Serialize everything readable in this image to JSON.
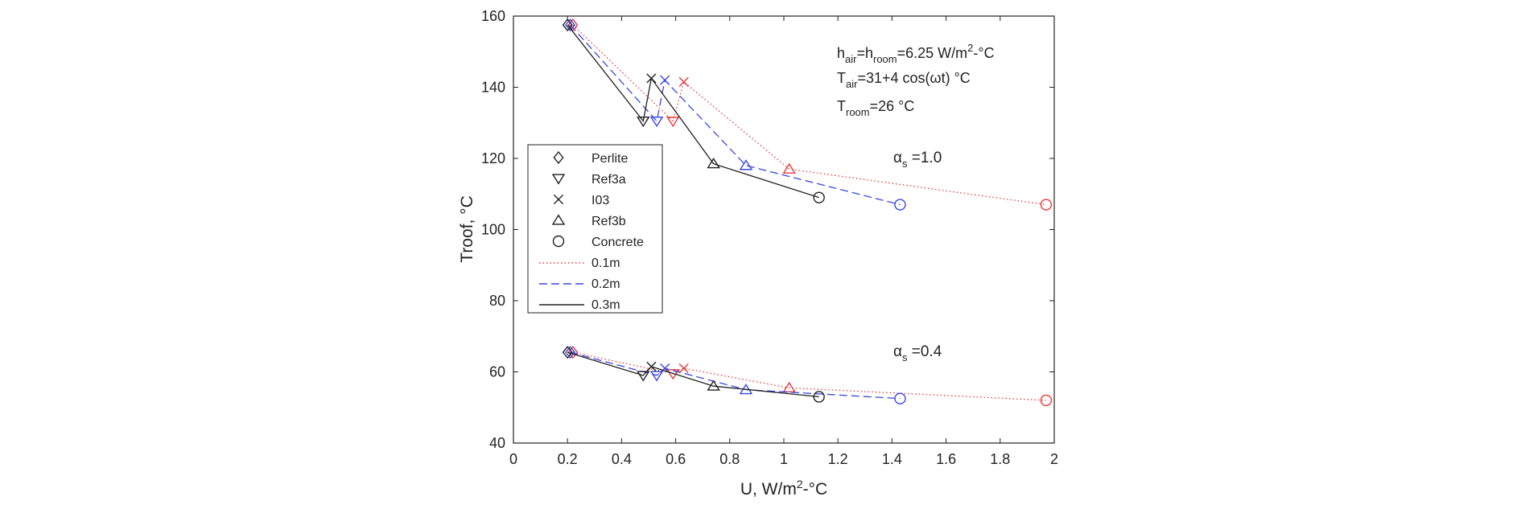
{
  "chart_data": {
    "type": "scatter",
    "xlabel": "U, W/m",
    "xlabel_sup": "2",
    "xlabel_tail": "-°C",
    "ylabel": "Troof, °C",
    "xlim": [
      0,
      2
    ],
    "ylim": [
      40,
      160
    ],
    "xticks": [
      "0",
      "0.2",
      "0.4",
      "0.6",
      "0.8",
      "1",
      "1.2",
      "1.4",
      "1.6",
      "1.8",
      "2"
    ],
    "yticks": [
      "40",
      "60",
      "80",
      "100",
      "120",
      "140",
      "160"
    ],
    "series": [
      {
        "name": "0.1m",
        "color": "#e8393b",
        "dash": "1.5,3",
        "groups": [
          {
            "alpha": "1.0",
            "x": [
              0.22,
              0.59,
              0.63,
              1.02,
              1.97
            ],
            "y": [
              157.5,
              130.5,
              141.5,
              117.0,
              107.0
            ]
          },
          {
            "alpha": "0.4",
            "x": [
              0.22,
              0.59,
              0.63,
              1.02,
              1.97
            ],
            "y": [
              65.5,
              59.5,
              61.0,
              55.5,
              52.0
            ]
          }
        ]
      },
      {
        "name": "0.2m",
        "color": "#3a47e0",
        "dash": "10,5",
        "groups": [
          {
            "alpha": "1.0",
            "x": [
              0.21,
              0.53,
              0.56,
              0.86,
              1.43
            ],
            "y": [
              157.5,
              130.5,
              142.0,
              118.0,
              107.0
            ]
          },
          {
            "alpha": "0.4",
            "x": [
              0.21,
              0.53,
              0.56,
              0.86,
              1.43
            ],
            "y": [
              65.5,
              59.0,
              61.0,
              55.0,
              52.5
            ]
          }
        ]
      },
      {
        "name": "0.3m",
        "color": "#222222",
        "dash": "",
        "groups": [
          {
            "alpha": "1.0",
            "x": [
              0.2,
              0.48,
              0.51,
              0.74,
              1.13
            ],
            "y": [
              157.5,
              130.5,
              142.5,
              118.5,
              109.0
            ]
          },
          {
            "alpha": "0.4",
            "x": [
              0.2,
              0.48,
              0.51,
              0.74,
              1.13
            ],
            "y": [
              65.5,
              59.0,
              61.5,
              56.0,
              53.0
            ]
          }
        ]
      }
    ],
    "point_order": [
      "Perlite",
      "Ref3a",
      "I03",
      "Ref3b",
      "Concrete"
    ],
    "legend": {
      "placement": "center-left",
      "markers": [
        {
          "marker": "diamond",
          "label": "Perlite"
        },
        {
          "marker": "triangle-down",
          "label": "Ref3a"
        },
        {
          "marker": "x",
          "label": "I03"
        },
        {
          "marker": "triangle-up",
          "label": "Ref3b"
        },
        {
          "marker": "circle",
          "label": "Concrete"
        }
      ],
      "lines": [
        {
          "label": "0.1m",
          "color": "#e8393b",
          "dash": "1.5,3"
        },
        {
          "label": "0.2m",
          "color": "#3a47e0",
          "dash": "10,5"
        },
        {
          "label": "0.3m",
          "color": "#222222",
          "dash": ""
        }
      ]
    },
    "annotations": {
      "h_line": {
        "a": "h",
        "a_sub": "air",
        "b": "=h",
        "b_sub": "room",
        "c": "=6.25 W/m",
        "c_sup": "2",
        "d": "-°C"
      },
      "t_air": {
        "a": "T",
        "a_sub": "air",
        "b": "=31+4 cos(ωt) °C"
      },
      "t_room": {
        "a": "T",
        "a_sub": "room",
        "b": "=26 °C"
      },
      "alpha_high": {
        "a": "α",
        "a_sub": "s",
        "b": " =1.0"
      },
      "alpha_low": {
        "a": "α",
        "a_sub": "s",
        "b": " =0.4"
      }
    }
  }
}
